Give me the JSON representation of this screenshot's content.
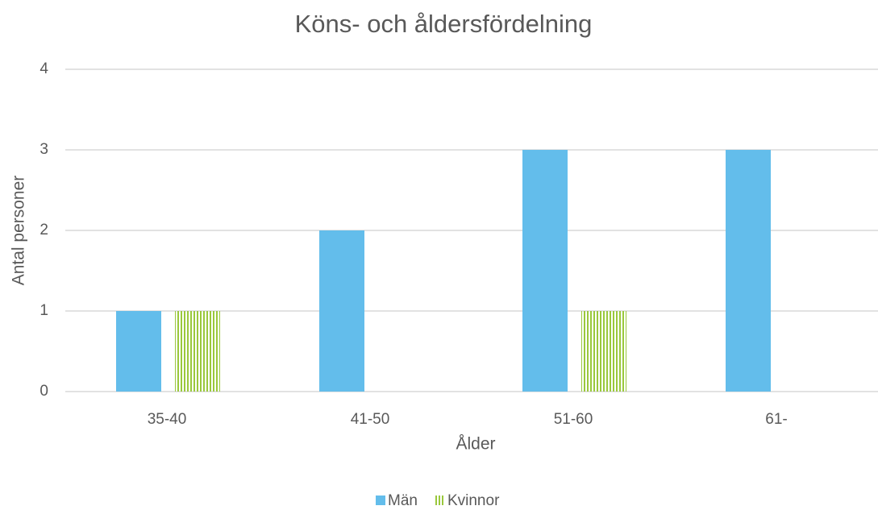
{
  "chart_data": {
    "type": "bar",
    "title": "Köns- och åldersfördelning",
    "x_label": "Ålder",
    "y_label": "Antal personer",
    "categories": [
      "35-40",
      "41-50",
      "51-60",
      "61-"
    ],
    "series": [
      {
        "name": "Män",
        "color": "#63bdeb",
        "values": [
          1,
          2,
          3,
          3
        ]
      },
      {
        "name": "Kvinnor",
        "color": "#9ac83c",
        "values": [
          1,
          0,
          1,
          0
        ]
      }
    ],
    "ylim": [
      0,
      4
    ],
    "yticks": [
      0,
      1,
      2,
      3,
      4
    ],
    "grid": true,
    "legend": "bottom"
  }
}
